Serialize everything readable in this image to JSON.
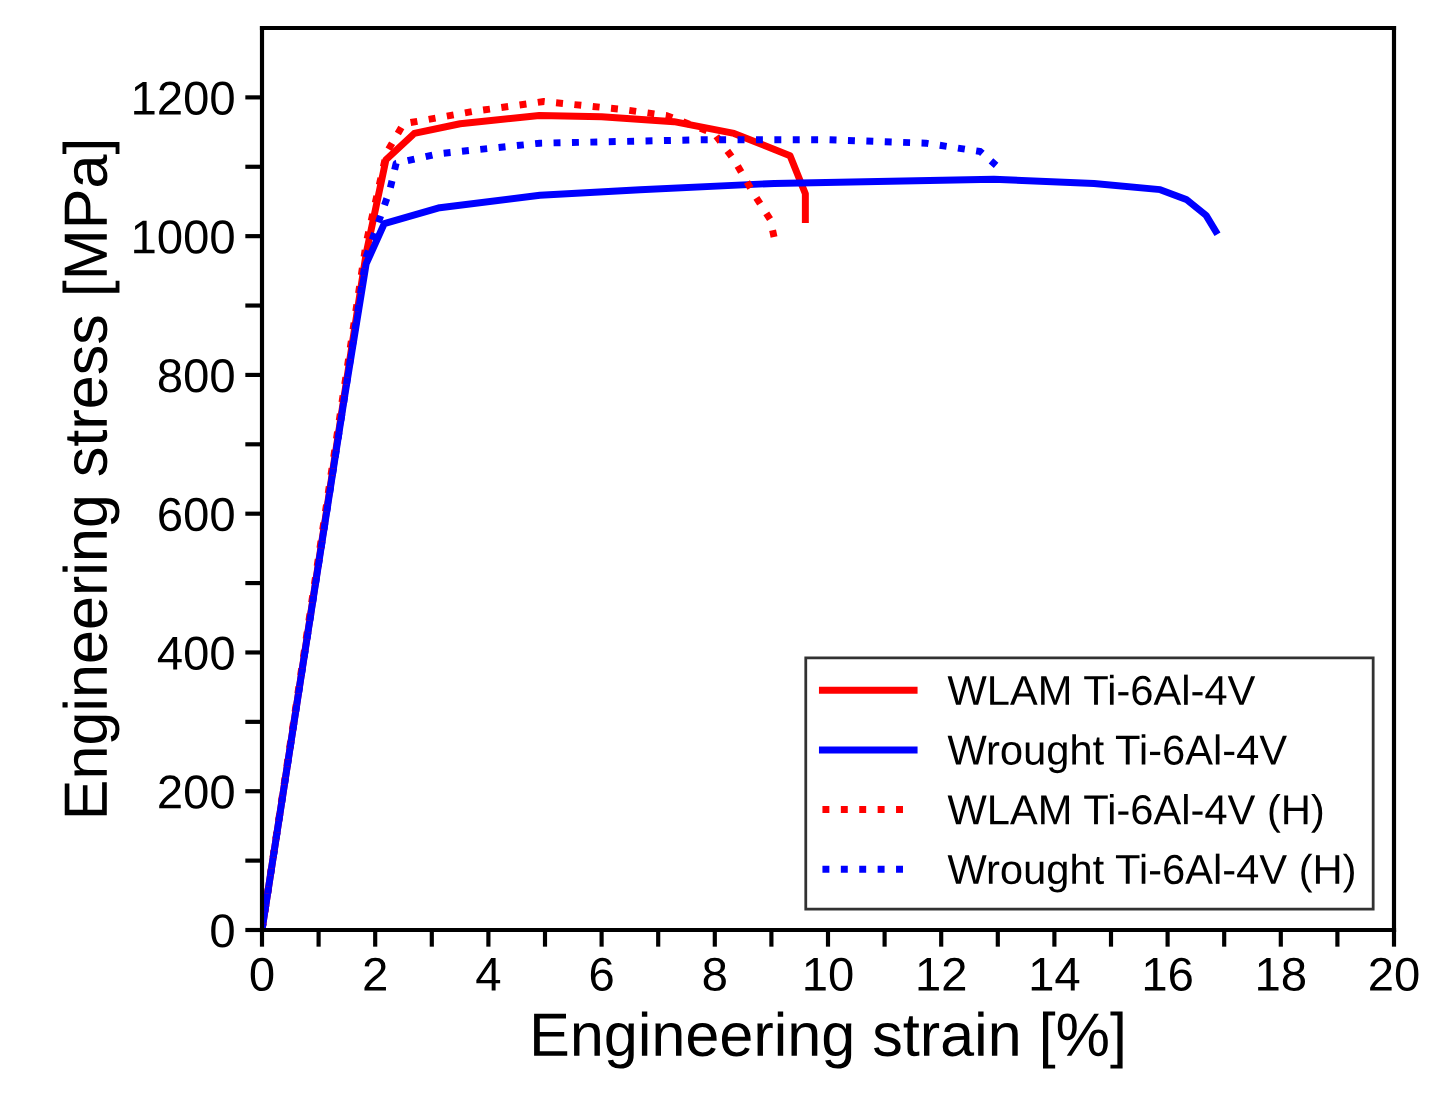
{
  "chart_data": {
    "type": "line",
    "xlabel": "Engineering strain [%]",
    "ylabel": "Engineering stress [MPa]",
    "xlim": [
      0,
      20
    ],
    "ylim": [
      0,
      1300
    ],
    "xticks": [
      0,
      {
        "value": 1,
        "label": null
      },
      2,
      {
        "value": 3,
        "label": null
      },
      4,
      {
        "value": 5,
        "label": null
      },
      6,
      {
        "value": 7,
        "label": null
      },
      8,
      {
        "value": 9,
        "label": null
      },
      10,
      {
        "value": 11,
        "label": null
      },
      12,
      {
        "value": 13,
        "label": null
      },
      14,
      {
        "value": 15,
        "label": null
      },
      16,
      {
        "value": 17,
        "label": null
      },
      18,
      {
        "value": 19,
        "label": null
      },
      20
    ],
    "yticks": [
      0,
      {
        "value": 100,
        "label": null
      },
      200,
      {
        "value": 300,
        "label": null
      },
      400,
      {
        "value": 500,
        "label": null
      },
      600,
      {
        "value": 700,
        "label": null
      },
      800,
      {
        "value": 900,
        "label": null
      },
      1000,
      {
        "value": 1100,
        "label": null
      },
      1200
    ],
    "grid": false,
    "legend": "bottom right",
    "marker": "none",
    "series": [
      {
        "name": "WLAM Ti-6Al-4V",
        "color": "#ff0000",
        "line_style": "solid",
        "x": [
          0,
          1.84,
          2.19,
          2.69,
          3.5,
          4.9,
          6.0,
          7.28,
          8.34,
          9.33,
          9.6,
          9.6
        ],
        "values": [
          0,
          975,
          1110,
          1148,
          1162,
          1174,
          1172,
          1165,
          1148,
          1116,
          1061,
          1024
        ]
      },
      {
        "name": "Wrought Ti-6Al-4V",
        "color": "#0000ff",
        "line_style": "solid",
        "x": [
          0,
          0.7,
          1.45,
          1.84,
          2.16,
          3.14,
          4.91,
          6.68,
          9.05,
          12.93,
          14.7,
          15.87,
          16.33,
          16.68,
          16.85
        ],
        "values": [
          0,
          370,
          764,
          960,
          1018,
          1041,
          1059,
          1067,
          1076,
          1082,
          1076,
          1067,
          1053,
          1030,
          1007
        ]
      },
      {
        "name": "WLAM Ti-6Al-4V (H)",
        "color": "#ff0000",
        "line_style": "dotted",
        "x": [
          0,
          1.84,
          2.2,
          2.5,
          3.75,
          4.98,
          6.33,
          7.14,
          7.99,
          8.34,
          8.69,
          8.98,
          9.08
        ],
        "values": [
          0,
          990,
          1120,
          1162,
          1180,
          1194,
          1183,
          1174,
          1148,
          1110,
          1061,
          1024,
          986
        ]
      },
      {
        "name": "Wrought Ti-6Al-4V (H)",
        "color": "#0000ff",
        "line_style": "dotted",
        "x": [
          0,
          0.7,
          1.45,
          1.84,
          2.26,
          2.37,
          3.14,
          4.91,
          7.84,
          9.98,
          11.73,
          12.69,
          12.97
        ],
        "values": [
          0,
          370,
          764,
          970,
          1067,
          1105,
          1119,
          1134,
          1139,
          1139,
          1134,
          1122,
          1102
        ]
      }
    ]
  }
}
